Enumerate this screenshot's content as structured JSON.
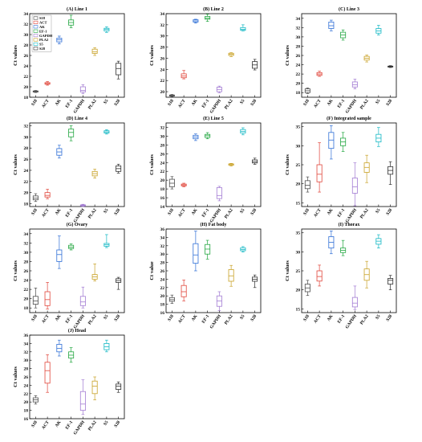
{
  "chart_data": [
    {
      "type": "box",
      "title": "(A) Line 1",
      "ylabel": "Ct values",
      "ylim": [
        18,
        34
      ],
      "yticks": [
        18,
        20,
        22,
        24,
        26,
        28,
        30,
        32,
        34
      ],
      "categories": [
        "S18",
        "ACT",
        "AK",
        "EF-1",
        "GAPDH",
        "PLA2",
        "S5",
        "S28"
      ],
      "boxes": [
        {
          "min": 18.9,
          "q1": 19.0,
          "median": 19.1,
          "q3": 19.2,
          "max": 19.3
        },
        {
          "min": 20.3,
          "q1": 20.5,
          "median": 20.6,
          "q3": 20.8,
          "max": 21.0
        },
        {
          "min": 28.2,
          "q1": 28.6,
          "median": 29.0,
          "q3": 29.3,
          "max": 29.7
        },
        {
          "min": 31.3,
          "q1": 31.8,
          "median": 32.3,
          "q3": 32.8,
          "max": 33.7
        },
        {
          "min": 18.7,
          "q1": 19.0,
          "median": 19.3,
          "q3": 20.0,
          "max": 20.4
        },
        {
          "min": 26.0,
          "q1": 26.4,
          "median": 26.7,
          "q3": 27.2,
          "max": 27.5
        },
        {
          "min": 30.4,
          "q1": 30.7,
          "median": 31.0,
          "q3": 31.2,
          "max": 31.5
        },
        {
          "min": 21.5,
          "q1": 22.3,
          "median": 23.5,
          "q3": 24.5,
          "max": 24.9
        }
      ],
      "legend": [
        "S18",
        "ACT",
        "AK",
        "EF-1",
        "GAPDH",
        "PLA2",
        "S5",
        "S28"
      ],
      "legend_placement": "top-left"
    },
    {
      "type": "box",
      "title": "(B) Line 2",
      "ylabel": "Ct values",
      "ylim": [
        19,
        34
      ],
      "yticks": [
        20,
        22,
        24,
        26,
        28,
        30,
        32,
        34
      ],
      "categories": [
        "S18",
        "ACT",
        "AK",
        "EF-1",
        "GAPDH",
        "PLA2",
        "S5",
        "S28"
      ],
      "boxes": [
        {
          "min": 19.1,
          "q1": 19.2,
          "median": 19.3,
          "q3": 19.4,
          "max": 19.5
        },
        {
          "min": 22.3,
          "q1": 22.5,
          "median": 22.8,
          "q3": 23.2,
          "max": 23.8
        },
        {
          "min": 32.3,
          "q1": 32.5,
          "median": 32.7,
          "q3": 32.9,
          "max": 33.0
        },
        {
          "min": 32.6,
          "q1": 33.0,
          "median": 33.2,
          "q3": 33.5,
          "max": 33.9
        },
        {
          "min": 19.8,
          "q1": 20.0,
          "median": 20.4,
          "q3": 20.8,
          "max": 21.0
        },
        {
          "min": 26.3,
          "q1": 26.5,
          "median": 26.7,
          "q3": 26.9,
          "max": 27.0
        },
        {
          "min": 30.9,
          "q1": 31.0,
          "median": 31.2,
          "q3": 31.5,
          "max": 32.0
        },
        {
          "min": 23.9,
          "q1": 24.2,
          "median": 24.8,
          "q3": 25.4,
          "max": 25.8
        }
      ]
    },
    {
      "type": "box",
      "title": "(C) Line 3",
      "ylabel": "Ct values",
      "ylim": [
        17,
        35
      ],
      "yticks": [
        18,
        20,
        22,
        24,
        26,
        28,
        30,
        32,
        34
      ],
      "categories": [
        "S18",
        "ACT",
        "AK",
        "EF-1",
        "GAPDH",
        "PLA2",
        "S5",
        "S28"
      ],
      "boxes": [
        {
          "min": 17.8,
          "q1": 18.0,
          "median": 18.4,
          "q3": 18.8,
          "max": 19.0
        },
        {
          "min": 21.5,
          "q1": 21.7,
          "median": 22.0,
          "q3": 22.3,
          "max": 22.6
        },
        {
          "min": 31.3,
          "q1": 31.8,
          "median": 32.4,
          "q3": 33.2,
          "max": 33.6
        },
        {
          "min": 29.3,
          "q1": 29.8,
          "median": 30.4,
          "q3": 31.0,
          "max": 31.5
        },
        {
          "min": 18.8,
          "q1": 19.2,
          "median": 19.7,
          "q3": 20.3,
          "max": 20.9
        },
        {
          "min": 24.6,
          "q1": 25.0,
          "median": 25.4,
          "q3": 25.8,
          "max": 26.1
        },
        {
          "min": 30.4,
          "q1": 30.8,
          "median": 31.3,
          "q3": 31.8,
          "max": 32.5
        },
        {
          "min": 23.4,
          "q1": 23.5,
          "median": 23.6,
          "q3": 23.7,
          "max": 23.8
        }
      ]
    },
    {
      "type": "box",
      "title": "(D) Line 4",
      "ylabel": "Ct values",
      "ylim": [
        17.5,
        32.5
      ],
      "yticks": [
        18,
        20,
        22,
        24,
        26,
        28,
        30,
        32
      ],
      "categories": [
        "S18",
        "ACT",
        "AK",
        "EF-1",
        "GAPDH",
        "PLA2",
        "S5",
        "S28"
      ],
      "boxes": [
        {
          "min": 18.4,
          "q1": 18.7,
          "median": 19.0,
          "q3": 19.4,
          "max": 19.8
        },
        {
          "min": 18.9,
          "q1": 19.2,
          "median": 19.5,
          "q3": 20.0,
          "max": 20.6
        },
        {
          "min": 26.2,
          "q1": 26.7,
          "median": 27.3,
          "q3": 27.9,
          "max": 28.5
        },
        {
          "min": 29.3,
          "q1": 30.0,
          "median": 30.8,
          "q3": 31.4,
          "max": 32.0
        },
        {
          "min": 17.5,
          "q1": 17.6,
          "median": 17.7,
          "q3": 17.8,
          "max": 17.9
        },
        {
          "min": 22.6,
          "q1": 23.0,
          "median": 23.4,
          "q3": 23.8,
          "max": 24.2
        },
        {
          "min": 30.5,
          "q1": 30.7,
          "median": 30.9,
          "q3": 31.1,
          "max": 31.3
        },
        {
          "min": 23.5,
          "q1": 23.8,
          "median": 24.3,
          "q3": 24.8,
          "max": 25.1
        }
      ]
    },
    {
      "type": "box",
      "title": "(E) Line 5",
      "ylabel": "Ct values",
      "ylim": [
        14,
        33
      ],
      "yticks": [
        14,
        16,
        18,
        20,
        22,
        24,
        26,
        28,
        30,
        32
      ],
      "categories": [
        "S18",
        "ACT",
        "AK",
        "EF-1",
        "GAPDH",
        "PLA2",
        "S5",
        "S28"
      ],
      "boxes": [
        {
          "min": 18.0,
          "q1": 18.5,
          "median": 19.3,
          "q3": 20.2,
          "max": 20.8
        },
        {
          "min": 18.5,
          "q1": 18.7,
          "median": 18.9,
          "q3": 19.1,
          "max": 19.3
        },
        {
          "min": 29.0,
          "q1": 29.4,
          "median": 29.8,
          "q3": 30.2,
          "max": 30.5
        },
        {
          "min": 29.4,
          "q1": 29.7,
          "median": 30.1,
          "q3": 30.4,
          "max": 30.8
        },
        {
          "min": 15.3,
          "q1": 15.8,
          "median": 16.5,
          "q3": 18.3,
          "max": 18.6
        },
        {
          "min": 23.2,
          "q1": 23.4,
          "median": 23.6,
          "q3": 23.7,
          "max": 23.8
        },
        {
          "min": 30.3,
          "q1": 30.7,
          "median": 31.1,
          "q3": 31.5,
          "max": 31.9
        },
        {
          "min": 23.6,
          "q1": 23.9,
          "median": 24.2,
          "q3": 24.6,
          "max": 25.0
        }
      ]
    },
    {
      "type": "box",
      "title": "(F) Integrated sample",
      "ylabel": "Ct values",
      "ylim": [
        14,
        36
      ],
      "yticks": [
        15,
        20,
        25,
        30,
        35
      ],
      "categories": [
        "S18",
        "ACT",
        "AK",
        "EF-1",
        "GAPDH",
        "PLA2",
        "S5",
        "S28"
      ],
      "boxes": [
        {
          "min": 17.8,
          "q1": 18.7,
          "median": 19.6,
          "q3": 20.8,
          "max": 21.8
        },
        {
          "min": 17.8,
          "q1": 20.5,
          "median": 22.5,
          "q3": 25.0,
          "max": 30.8
        },
        {
          "min": 26.5,
          "q1": 29.3,
          "median": 31.5,
          "q3": 33.5,
          "max": 35.3
        },
        {
          "min": 28.5,
          "q1": 30.0,
          "median": 31.0,
          "q3": 32.0,
          "max": 33.5
        },
        {
          "min": 14.2,
          "q1": 17.5,
          "median": 19.2,
          "q3": 21.5,
          "max": 25.5
        },
        {
          "min": 20.3,
          "q1": 23.0,
          "median": 24.3,
          "q3": 25.5,
          "max": 27.5
        },
        {
          "min": 29.8,
          "q1": 31.0,
          "median": 32.0,
          "q3": 33.0,
          "max": 34.8
        },
        {
          "min": 19.8,
          "q1": 22.5,
          "median": 23.5,
          "q3": 24.5,
          "max": 25.8
        }
      ]
    },
    {
      "type": "box",
      "title": "(G) Ovary",
      "ylabel": "Ct values",
      "ylim": [
        17,
        35
      ],
      "yticks": [
        18,
        20,
        22,
        24,
        26,
        28,
        30,
        32,
        34
      ],
      "categories": [
        "S18",
        "ACT",
        "AK",
        "EF-1",
        "GAPDH",
        "PLA2",
        "S5",
        "S28"
      ],
      "boxes": [
        {
          "min": 18.0,
          "q1": 18.8,
          "median": 19.5,
          "q3": 20.5,
          "max": 22.3
        },
        {
          "min": 17.8,
          "q1": 18.5,
          "median": 19.8,
          "q3": 21.5,
          "max": 23.5
        },
        {
          "min": 26.5,
          "q1": 28.0,
          "median": 29.5,
          "q3": 30.5,
          "max": 33.5
        },
        {
          "min": 30.5,
          "q1": 30.8,
          "median": 31.1,
          "q3": 31.5,
          "max": 31.8
        },
        {
          "min": 18.0,
          "q1": 18.5,
          "median": 19.3,
          "q3": 20.5,
          "max": 22.5
        },
        {
          "min": 23.8,
          "q1": 24.2,
          "median": 24.7,
          "q3": 25.2,
          "max": 27.5
        },
        {
          "min": 31.0,
          "q1": 31.3,
          "median": 31.6,
          "q3": 31.9,
          "max": 33.8
        },
        {
          "min": 22.0,
          "q1": 23.5,
          "median": 23.9,
          "q3": 24.3,
          "max": 24.6
        }
      ]
    },
    {
      "type": "box",
      "title": "(H) Fat body",
      "ylabel": "Ct value",
      "ylim": [
        16,
        36
      ],
      "yticks": [
        16,
        18,
        20,
        22,
        24,
        26,
        28,
        30,
        32,
        34,
        36
      ],
      "categories": [
        "S18",
        "ACT",
        "AK",
        "EF-1",
        "GAPDH",
        "PLA2",
        "S5",
        "S28"
      ],
      "boxes": [
        {
          "min": 18.2,
          "q1": 18.7,
          "median": 19.1,
          "q3": 19.6,
          "max": 20.2
        },
        {
          "min": 18.8,
          "q1": 19.8,
          "median": 21.0,
          "q3": 22.5,
          "max": 23.8
        },
        {
          "min": 26.0,
          "q1": 27.8,
          "median": 29.8,
          "q3": 32.5,
          "max": 35.5
        },
        {
          "min": 28.8,
          "q1": 30.0,
          "median": 31.2,
          "q3": 32.3,
          "max": 33.3
        },
        {
          "min": 16.5,
          "q1": 17.5,
          "median": 18.8,
          "q3": 20.0,
          "max": 21.0
        },
        {
          "min": 22.3,
          "q1": 23.5,
          "median": 24.8,
          "q3": 26.3,
          "max": 27.3
        },
        {
          "min": 30.5,
          "q1": 30.8,
          "median": 31.1,
          "q3": 31.5,
          "max": 31.8
        },
        {
          "min": 22.0,
          "q1": 23.5,
          "median": 24.0,
          "q3": 24.5,
          "max": 25.0
        }
      ]
    },
    {
      "type": "box",
      "title": "(I) Thorax",
      "ylabel": "Ct values",
      "ylim": [
        14,
        36
      ],
      "yticks": [
        15,
        20,
        25,
        30,
        35
      ],
      "categories": [
        "S18",
        "ACT",
        "AK",
        "EF-1",
        "GAPDH",
        "PLA2",
        "S5",
        "S28"
      ],
      "boxes": [
        {
          "min": 18.5,
          "q1": 19.5,
          "median": 20.5,
          "q3": 21.5,
          "max": 22.5
        },
        {
          "min": 21.0,
          "q1": 22.3,
          "median": 23.5,
          "q3": 25.0,
          "max": 26.5
        },
        {
          "min": 29.5,
          "q1": 31.0,
          "median": 32.5,
          "q3": 34.0,
          "max": 35.5
        },
        {
          "min": 29.0,
          "q1": 29.8,
          "median": 30.4,
          "q3": 31.0,
          "max": 33.0
        },
        {
          "min": 14.8,
          "q1": 15.5,
          "median": 16.5,
          "q3": 18.0,
          "max": 21.0
        },
        {
          "min": 20.5,
          "q1": 22.5,
          "median": 24.0,
          "q3": 25.5,
          "max": 27.5
        },
        {
          "min": 31.0,
          "q1": 32.0,
          "median": 32.8,
          "q3": 33.5,
          "max": 34.5
        },
        {
          "min": 20.0,
          "q1": 21.5,
          "median": 22.5,
          "q3": 23.0,
          "max": 23.8
        }
      ]
    },
    {
      "type": "box",
      "title": "(J) Head",
      "ylabel": "Ct values",
      "ylim": [
        16,
        36
      ],
      "yticks": [
        16,
        18,
        20,
        22,
        24,
        26,
        28,
        30,
        32,
        34,
        36
      ],
      "categories": [
        "S18",
        "ACT",
        "AK",
        "EF-1",
        "GAPDH",
        "PLA2",
        "S5",
        "S28"
      ],
      "boxes": [
        {
          "min": 19.5,
          "q1": 20.0,
          "median": 20.5,
          "q3": 21.0,
          "max": 21.5
        },
        {
          "min": 22.3,
          "q1": 24.5,
          "median": 27.5,
          "q3": 29.5,
          "max": 31.3
        },
        {
          "min": 31.0,
          "q1": 32.0,
          "median": 32.8,
          "q3": 33.8,
          "max": 34.8
        },
        {
          "min": 29.5,
          "q1": 30.5,
          "median": 31.2,
          "q3": 32.0,
          "max": 33.0
        },
        {
          "min": 17.0,
          "q1": 18.0,
          "median": 19.5,
          "q3": 22.5,
          "max": 25.3
        },
        {
          "min": 20.5,
          "q1": 22.0,
          "median": 23.8,
          "q3": 25.0,
          "max": 26.0
        },
        {
          "min": 32.0,
          "q1": 32.5,
          "median": 33.2,
          "q3": 34.0,
          "max": 34.8
        },
        {
          "min": 22.3,
          "q1": 23.0,
          "median": 23.8,
          "q3": 24.3,
          "max": 24.8
        }
      ]
    }
  ],
  "series_colors": [
    "#4d4d4d",
    "#e0453a",
    "#2f6fd6",
    "#22a640",
    "#a37cd3",
    "#c9a227",
    "#14b8c4",
    "#303030"
  ]
}
